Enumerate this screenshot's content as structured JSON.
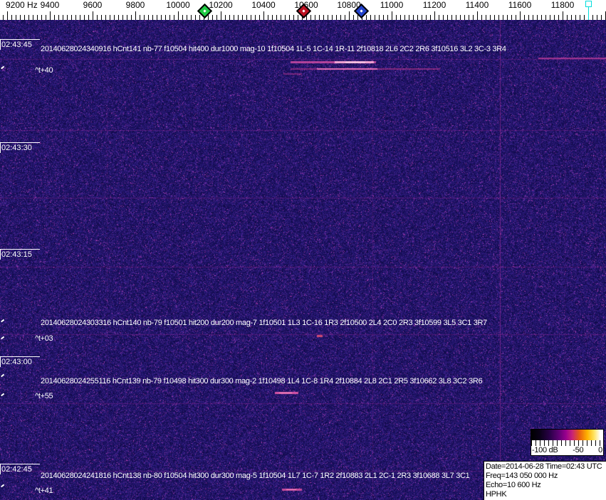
{
  "frequency_ruler": {
    "tick_labels": [
      "9200 Hz",
      "9400",
      "9600",
      "9800",
      "10000",
      "10200",
      "10400",
      "10600",
      "10800",
      "11000",
      "11200",
      "11400",
      "11600",
      "11800"
    ]
  },
  "time_axis": {
    "labels": [
      "02:43:45",
      "02:43:30",
      "02:43:15",
      "02:43:00",
      "02:42:45"
    ]
  },
  "detections": [
    {
      "text": "20140628024340916 hCnt141 nb-77 f10504 hit400 dur1000 mag-10 1f10504 1L-5 1C-14 1R-11 2f10818 2L6 2C2 2R6 3f10516 3L2 3C-3 3R4",
      "offset_label": "^t+40"
    },
    {
      "text": "20140628024303316 hCnt140 nb-79 f10501 hit200 dur200 mag-7 1f10501 1L3 1C-16 1R3 2f10500 2L4 2C0 2R3 3f10599 3L5 3C1 3R7",
      "offset_label": "^t+03"
    },
    {
      "text": "20140628024255116 hCnt139 nb-79 f10498 hit300 dur300 mag-2 1f10498 1L4 1C-8 1R4 2f10884 2L8 2C1 2R5 3f10662 3L8 3C2 3R6",
      "offset_label": "^t+55"
    },
    {
      "text": "20140628024241816 hCnt138 nb-80 f10504 hit300 dur300 mag-5 1f10504 1L7 1C-7 1R2 2f10883 2L1 2C-1 2R3 3f10688 3L7 3C1",
      "offset_label": "^t+41"
    }
  ],
  "info_box": {
    "lines": [
      "Date=2014-06-28 Time=02:43 UTC",
      "Freq=143 050 000 Hz",
      "Echo=10 600 Hz",
      "HPHK"
    ]
  },
  "legend": {
    "labels": [
      "-100 dB",
      "-50",
      "0"
    ]
  },
  "colors": {
    "spectrogram_background": "#1a1270",
    "grid_line": "#b428a0",
    "echo_streak": "#ff8cc8",
    "marker_green": "#1fcc44",
    "marker_red": "#bb1122",
    "marker_blue": "#2343cc",
    "marker_cyan": "#00dcdc",
    "ruler_background": "#ffffff",
    "overlay_text": "#ffffff"
  }
}
